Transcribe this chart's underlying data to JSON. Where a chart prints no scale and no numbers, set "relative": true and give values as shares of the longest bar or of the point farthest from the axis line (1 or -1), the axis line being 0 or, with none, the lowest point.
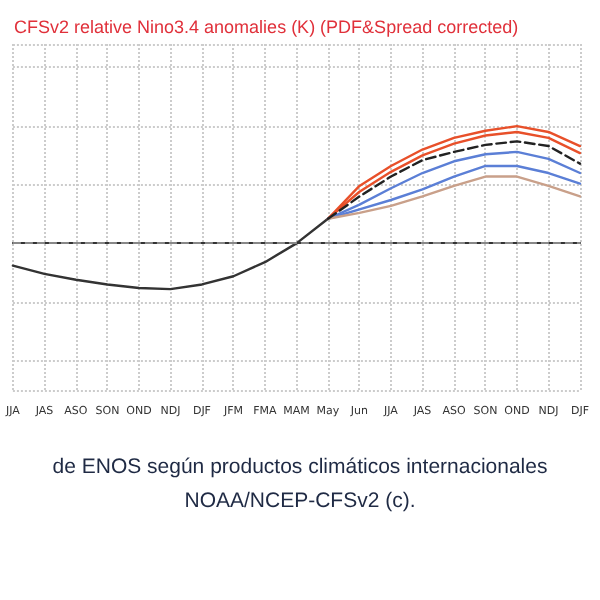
{
  "chart_data": {
    "type": "line",
    "title": "CFSv2 relative Nino3.4 anomalies (K) (PDF&Spread corrected)",
    "categories": [
      "JJA",
      "JAS",
      "ASO",
      "SON",
      "OND",
      "NDJ",
      "DJF",
      "JFM",
      "FMA",
      "MAM",
      "May",
      "Jun",
      "JJA",
      "JAS",
      "ASO",
      "SON",
      "OND",
      "NDJ",
      "DJF"
    ],
    "relative": true,
    "grid": true,
    "ref_lines": [
      {
        "axis": "y",
        "value": 0,
        "color": "#888888",
        "line_style": "dashed"
      }
    ],
    "series": [
      {
        "color": "#333333",
        "line_style": "solid",
        "values": [
          -0.19,
          -0.26,
          -0.31,
          -0.35,
          -0.38,
          -0.39,
          -0.35,
          -0.28,
          -0.16,
          0.0,
          0.21,
          null,
          null,
          null,
          null,
          null,
          null,
          null,
          null
        ]
      },
      {
        "color": "#e8502a",
        "line_style": "solid",
        "values": [
          null,
          null,
          null,
          null,
          null,
          null,
          null,
          null,
          null,
          null,
          0.21,
          0.49,
          0.66,
          0.8,
          0.9,
          0.96,
          1.0,
          0.95,
          0.83
        ]
      },
      {
        "color": "#e8502a",
        "line_style": "solid",
        "values": [
          null,
          null,
          null,
          null,
          null,
          null,
          null,
          null,
          null,
          null,
          0.21,
          0.44,
          0.61,
          0.75,
          0.85,
          0.92,
          0.95,
          0.9,
          0.77
        ]
      },
      {
        "color": "#5b7fd6",
        "line_style": "solid",
        "values": [
          null,
          null,
          null,
          null,
          null,
          null,
          null,
          null,
          null,
          null,
          0.21,
          0.33,
          0.47,
          0.6,
          0.7,
          0.76,
          0.78,
          0.72,
          0.6
        ]
      },
      {
        "color": "#5b7fd6",
        "line_style": "solid",
        "values": [
          null,
          null,
          null,
          null,
          null,
          null,
          null,
          null,
          null,
          null,
          0.21,
          0.29,
          0.37,
          0.46,
          0.57,
          0.66,
          0.66,
          0.6,
          0.51
        ]
      },
      {
        "color": "#c9a08a",
        "line_style": "solid",
        "values": [
          null,
          null,
          null,
          null,
          null,
          null,
          null,
          null,
          null,
          null,
          0.21,
          0.26,
          0.32,
          0.4,
          0.49,
          0.57,
          0.57,
          0.49,
          0.4
        ]
      },
      {
        "color": "#222222",
        "line_style": "dashed",
        "values": [
          null,
          null,
          null,
          null,
          null,
          null,
          null,
          null,
          null,
          null,
          0.21,
          0.4,
          0.57,
          0.71,
          0.78,
          0.84,
          0.87,
          0.83,
          0.68
        ]
      }
    ],
    "annotations": [
      "de ENOS según productos climáticos internacionales",
      "NOAA/NCEP-CFSv2 (c)."
    ]
  }
}
